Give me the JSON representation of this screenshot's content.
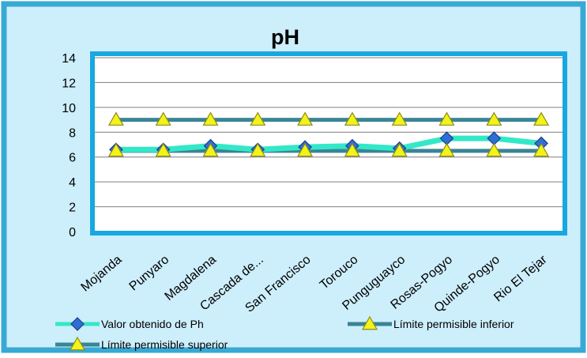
{
  "chart_data": {
    "type": "line",
    "title": "pH",
    "categories": [
      "Mojanda",
      "Punyaro",
      "Magdalena",
      "Cascada de...",
      "San Francisco",
      "Torouco",
      "Punguguayco",
      "Rosas-Pogyo",
      "Quinde-Pogyo",
      "Rio El Tejar"
    ],
    "ylim": [
      0,
      14
    ],
    "yticks": [
      0,
      2,
      4,
      6,
      8,
      10,
      12,
      14
    ],
    "grid": true,
    "legend_position": "bottom",
    "series": [
      {
        "name": "Valor obtenido de Ph",
        "values": [
          6.6,
          6.6,
          6.9,
          6.6,
          6.8,
          6.9,
          6.7,
          7.5,
          7.5,
          7.1
        ],
        "line_color": "#33e8c8",
        "marker": "diamond",
        "marker_color": "#2e6fd6"
      },
      {
        "name": "Límite permisible inferior",
        "values": [
          6.5,
          6.5,
          6.5,
          6.5,
          6.5,
          6.5,
          6.5,
          6.5,
          6.5,
          6.5
        ],
        "line_color": "#3a8494",
        "marker": "triangle",
        "marker_color": "#f3f31a"
      },
      {
        "name": "Límite permisible superior",
        "values": [
          9,
          9,
          9,
          9,
          9,
          9,
          9,
          9,
          9,
          9
        ],
        "line_color": "#3a8494",
        "marker": "triangle",
        "marker_color": "#f3f31a"
      }
    ],
    "colors": {
      "outer_background": "#cdeefb",
      "outer_border": "#38a9d4",
      "plot_background": "#ffffff",
      "plot_border": "#18a8e0",
      "gridline": "#7f7f7f"
    }
  }
}
